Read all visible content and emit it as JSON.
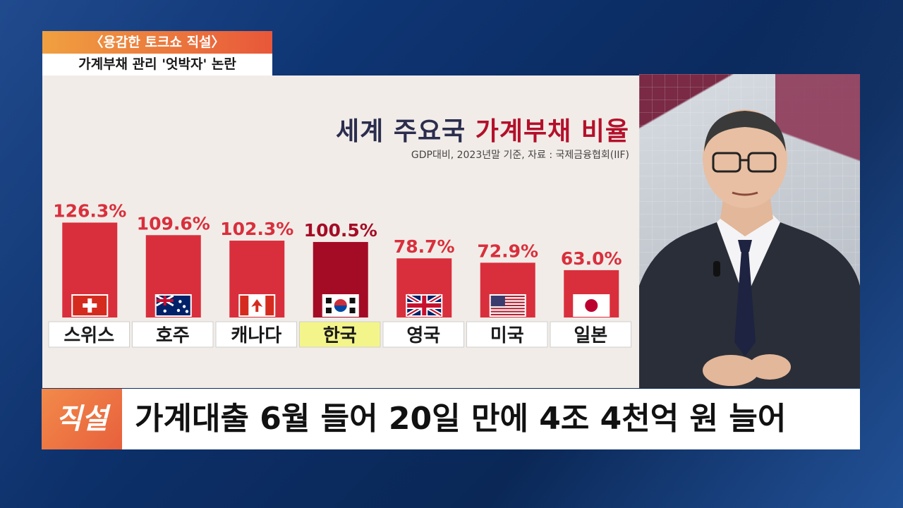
{
  "program": {
    "title": "〈용감한 토크쇼 직설〉",
    "topic": "가계부채 관리 '엇박자' 논란"
  },
  "caption": {
    "badge": "직설",
    "headline": "가계대출 6월 들어 20일 만에 4조 4천억 원 늘어"
  },
  "chart_data": {
    "type": "bar",
    "title_part1": "세계 주요국",
    "title_part2": "가계부채 비율",
    "subtitle": "GDP대비, 2023년말 기준, 자료 : 국제금융협회(IIF)",
    "categories": [
      "스위스",
      "호주",
      "캐나다",
      "한국",
      "영국",
      "미국",
      "일본"
    ],
    "values": [
      126.3,
      109.6,
      102.3,
      100.5,
      78.7,
      72.9,
      63.0
    ],
    "value_labels": [
      "126.3%",
      "109.6%",
      "102.3%",
      "100.5%",
      "78.7%",
      "72.9%",
      "63.0%"
    ],
    "flags": [
      "switzerland-flag-icon",
      "australia-flag-icon",
      "canada-flag-icon",
      "korea-flag-icon",
      "uk-flag-icon",
      "usa-flag-icon",
      "japan-flag-icon"
    ],
    "highlight_index": 3,
    "colors": {
      "bar": "#d92f3c",
      "highlight_bar": "#a40c26",
      "label": "#d92f3c",
      "highlight_label": "#a40c26",
      "highlight_category_bg": "#f3f58a"
    }
  }
}
